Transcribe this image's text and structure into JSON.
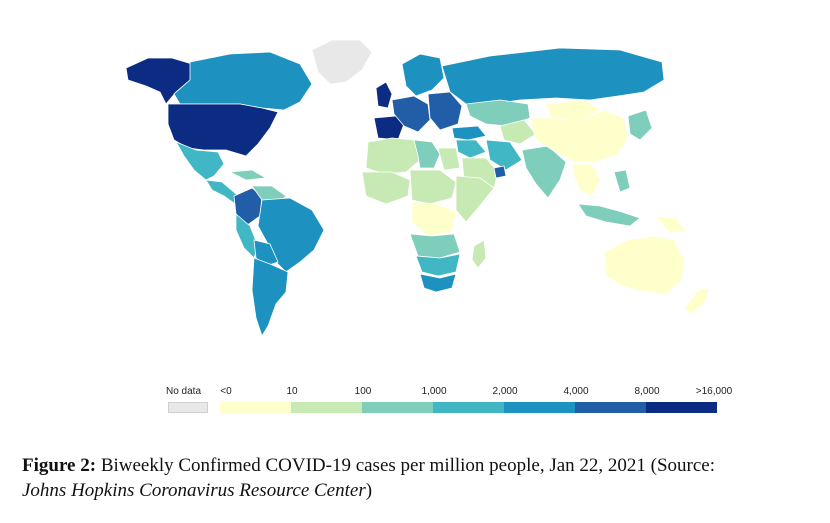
{
  "colors": {
    "no_data": "#e8e8e8",
    "scale": [
      "#ffffcc",
      "#c7e9b4",
      "#7fcdbb",
      "#41b6c4",
      "#1d91c0",
      "#225ea8",
      "#0c2c84"
    ],
    "border": "#ffffff"
  },
  "legend": {
    "no_data_label": "No data",
    "ticks": [
      "<0",
      "10",
      "100",
      "1,000",
      "2,000",
      "4,000",
      "8,000",
      ">16,000"
    ]
  },
  "caption": {
    "label": "Figure 2:",
    "text": " Biweekly Confirmed COVID-19 cases per million people, Jan 22, 2021 (Source:",
    "source_italic": "Johns Hopkins Coronavirus Resource Center",
    "close": ")"
  },
  "regions": [
    {
      "name": "alaska",
      "level": 6
    },
    {
      "name": "canada",
      "level": 4
    },
    {
      "name": "greenland",
      "level": -1
    },
    {
      "name": "usa",
      "level": 6
    },
    {
      "name": "mexico",
      "level": 3
    },
    {
      "name": "central-america",
      "level": 3
    },
    {
      "name": "cuba",
      "level": 2
    },
    {
      "name": "colombia",
      "level": 5
    },
    {
      "name": "venezuela",
      "level": 2
    },
    {
      "name": "brazil",
      "level": 4
    },
    {
      "name": "peru",
      "level": 3
    },
    {
      "name": "bolivia",
      "level": 4
    },
    {
      "name": "argentina-chile",
      "level": 4
    },
    {
      "name": "uk-ireland",
      "level": 6
    },
    {
      "name": "iberia",
      "level": 6
    },
    {
      "name": "scandinavia",
      "level": 4
    },
    {
      "name": "europe-west",
      "level": 5
    },
    {
      "name": "europe-east",
      "level": 5
    },
    {
      "name": "russia",
      "level": 4
    },
    {
      "name": "kazakhstan",
      "level": 2
    },
    {
      "name": "central-asia",
      "level": 1
    },
    {
      "name": "middle-east",
      "level": 3
    },
    {
      "name": "turkey",
      "level": 4
    },
    {
      "name": "iran",
      "level": 3
    },
    {
      "name": "arabia",
      "level": 1
    },
    {
      "name": "uae",
      "level": 5
    },
    {
      "name": "india",
      "level": 2
    },
    {
      "name": "china",
      "level": 0
    },
    {
      "name": "mongolia",
      "level": 0
    },
    {
      "name": "korea-japan",
      "level": 2
    },
    {
      "name": "se-asia",
      "level": 0
    },
    {
      "name": "philippines",
      "level": 2
    },
    {
      "name": "indonesia",
      "level": 2
    },
    {
      "name": "png",
      "level": 0
    },
    {
      "name": "australia",
      "level": 0
    },
    {
      "name": "new-zealand",
      "level": 0
    },
    {
      "name": "north-africa",
      "level": 1
    },
    {
      "name": "libya",
      "level": 2
    },
    {
      "name": "egypt",
      "level": 1
    },
    {
      "name": "west-africa",
      "level": 1
    },
    {
      "name": "central-africa",
      "level": 1
    },
    {
      "name": "east-africa",
      "level": 1
    },
    {
      "name": "drc",
      "level": 0
    },
    {
      "name": "angola-zambia",
      "level": 2
    },
    {
      "name": "southern-africa",
      "level": 3
    },
    {
      "name": "south-africa",
      "level": 4
    },
    {
      "name": "madagascar",
      "level": 1
    }
  ]
}
